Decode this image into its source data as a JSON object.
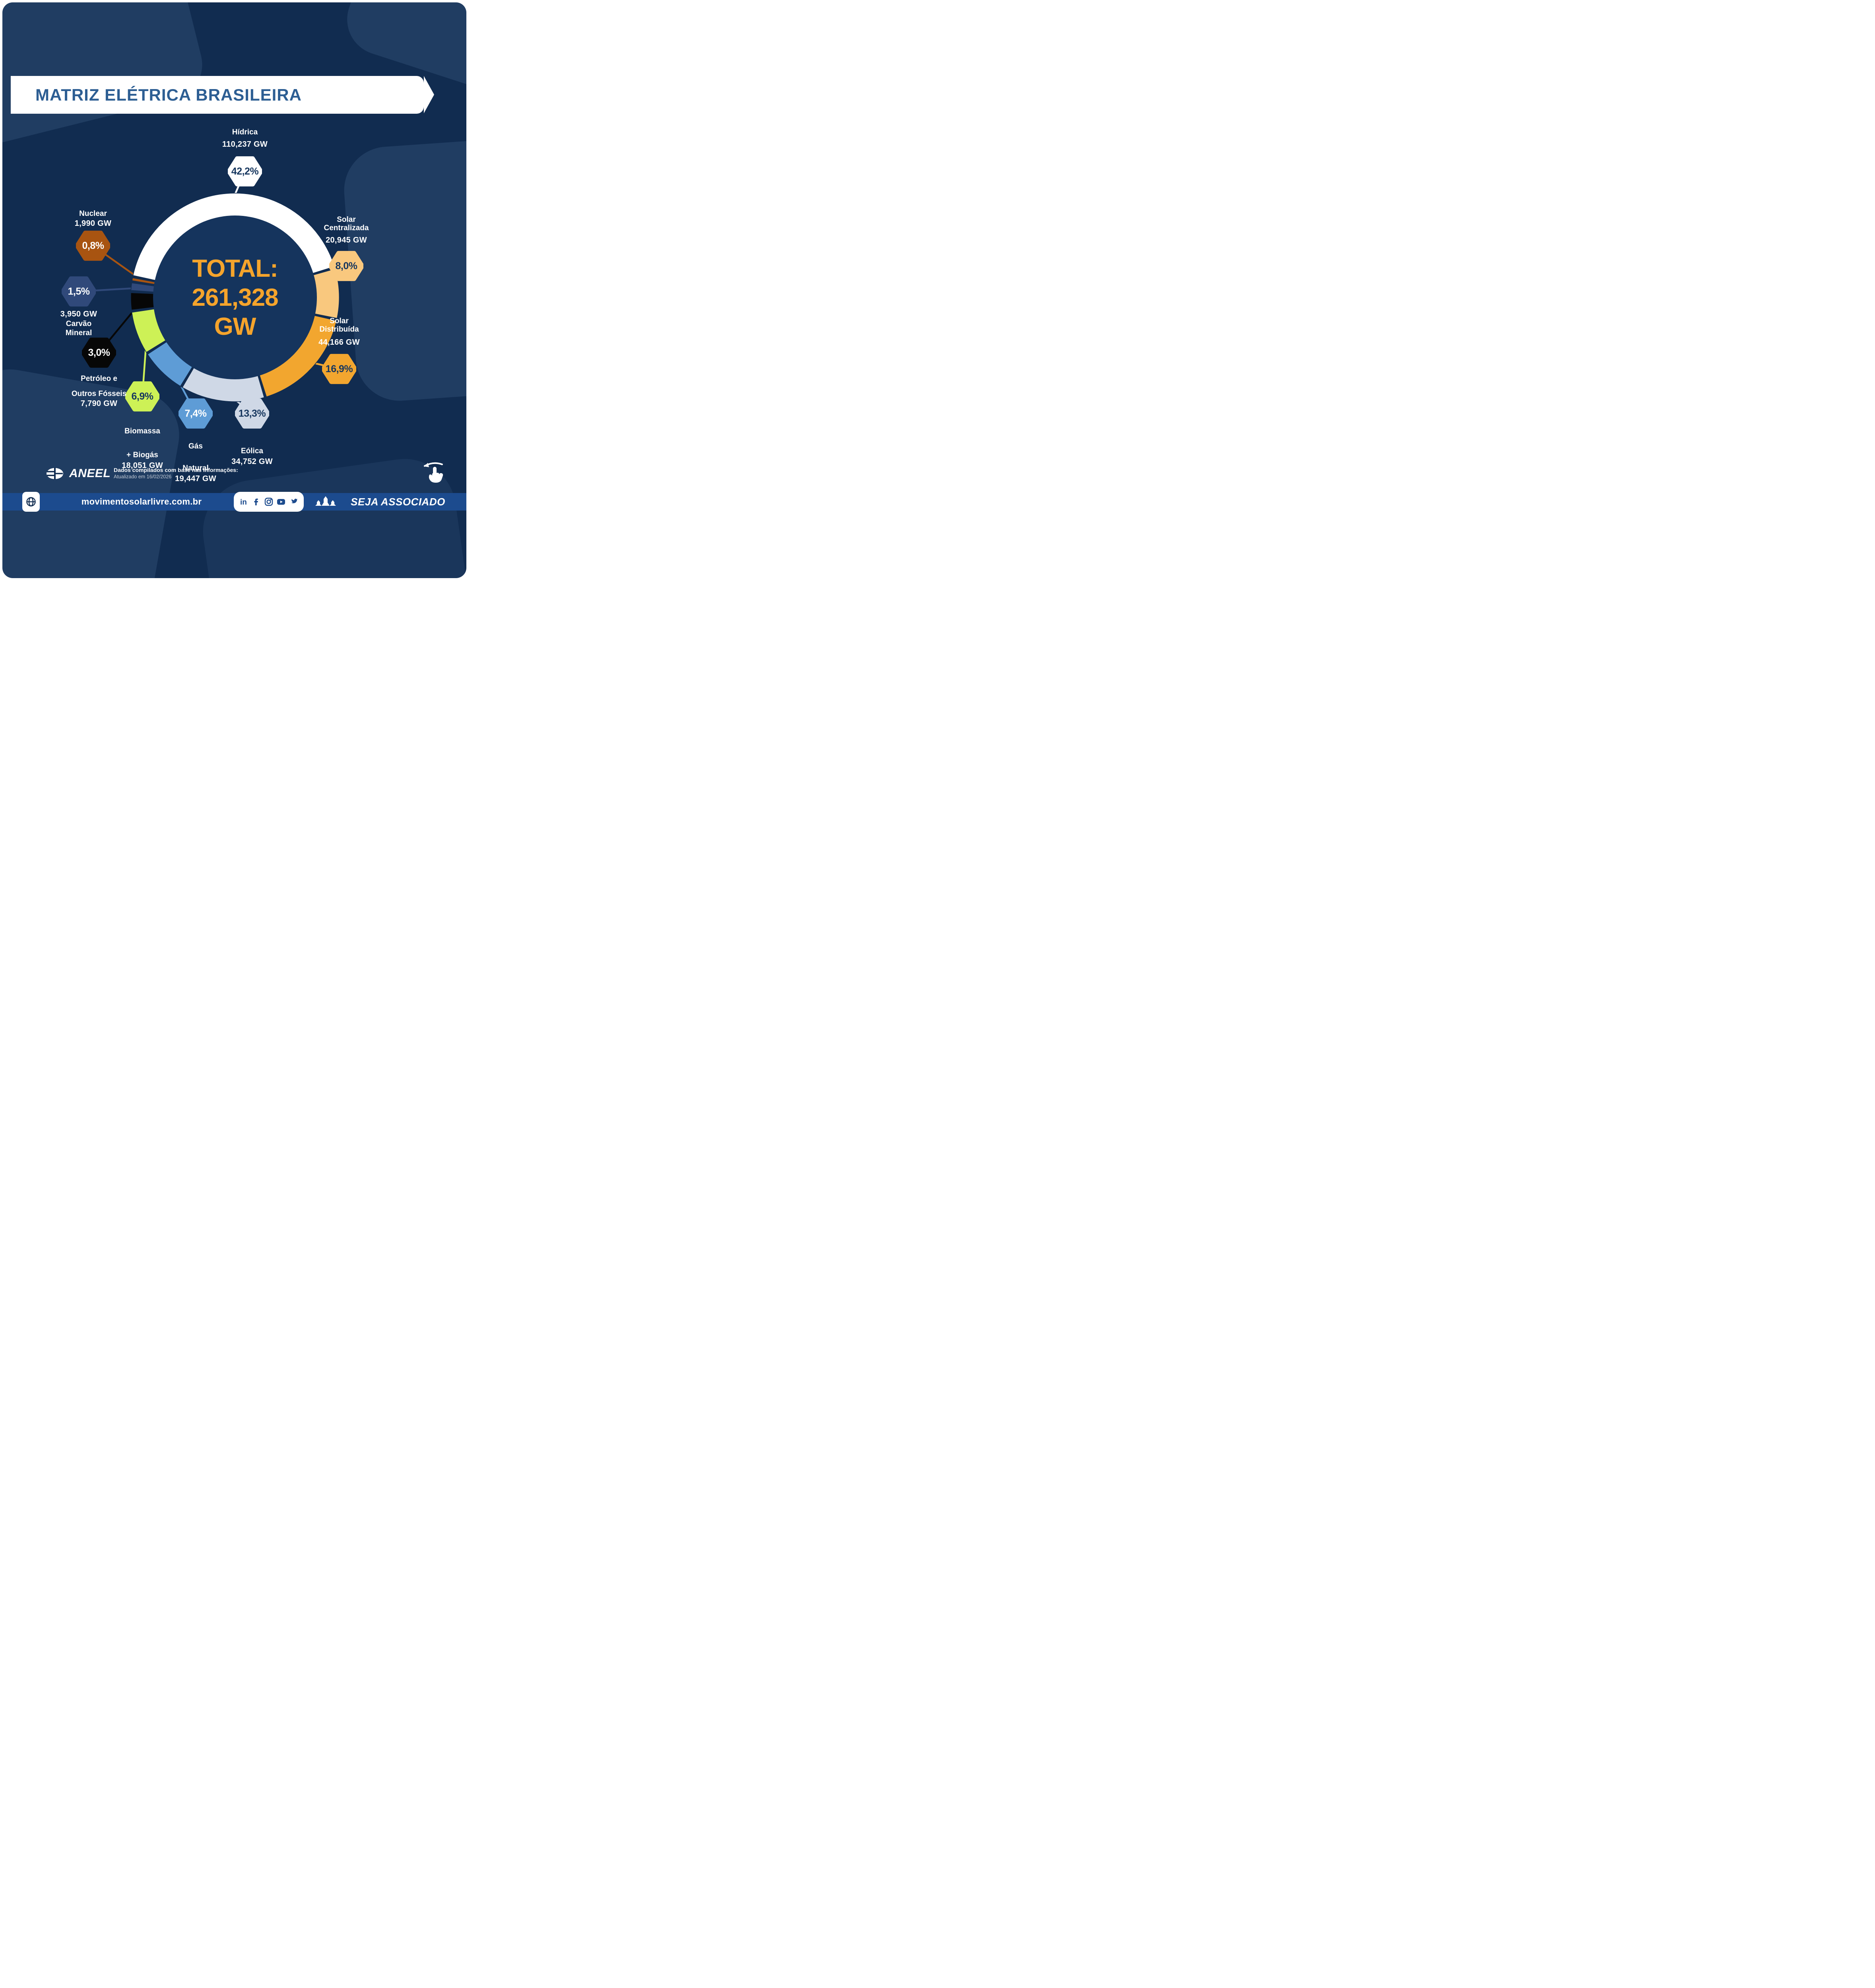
{
  "header": {
    "title": "MATRIZ ELÉTRICA BRASILEIRA"
  },
  "chart_data": {
    "type": "pie",
    "donut": true,
    "title": "Matriz Elétrica Brasileira",
    "unit": "GW",
    "total_label_lines": [
      "TOTAL:",
      "261,328",
      "GW"
    ],
    "total_value_gw": "261,328",
    "start_angle_deg": -78.5,
    "gap_deg": 1.6,
    "legend_position": "callouts-around",
    "series": [
      {
        "name": "Hídrica",
        "name_lines": [
          "Hídrica"
        ],
        "value_label": "110,237 GW",
        "value_gw": 110237,
        "pct": 42.2,
        "pct_label": "42,2%",
        "color": "#ffffff",
        "text_on_hex": "#17375f"
      },
      {
        "name": "Solar Centralizada",
        "name_lines": [
          "Solar",
          "Centralizada"
        ],
        "value_label": "20,945 GW",
        "value_gw": 20945,
        "pct": 8.0,
        "pct_label": "8,0%",
        "color": "#f9c87e",
        "text_on_hex": "#17375f"
      },
      {
        "name": "Solar Distribuída",
        "name_lines": [
          "Solar",
          "Distribuída"
        ],
        "value_label": "44,166 GW",
        "value_gw": 44166,
        "pct": 16.9,
        "pct_label": "16,9%",
        "color": "#f2a62f",
        "text_on_hex": "#17375f"
      },
      {
        "name": "Eólica",
        "name_lines": [
          "Eólica"
        ],
        "value_label": "34,752 GW",
        "value_gw": 34752,
        "pct": 13.3,
        "pct_label": "13,3%",
        "color": "#cfd8e6",
        "text_on_hex": "#17375f"
      },
      {
        "name": "Gás Natural",
        "name_lines": [
          "Gás",
          "Natural"
        ],
        "value_label": "19,447 GW",
        "value_gw": 19447,
        "pct": 7.4,
        "pct_label": "7,4%",
        "color": "#5e9cd6",
        "text_on_hex": "#ffffff"
      },
      {
        "name": "Biomassa + Biogás",
        "name_lines": [
          "Biomassa",
          "+ Biogás"
        ],
        "value_label": "18,051 GW",
        "value_gw": 18051,
        "pct": 6.9,
        "pct_label": "6,9%",
        "color": "#cdf156",
        "text_on_hex": "#17375f"
      },
      {
        "name": "Petróleo e Outros Fósseis",
        "name_lines": [
          "Petróleo e",
          "Outros Fósseis"
        ],
        "value_label": "7,790 GW",
        "value_gw": 7790,
        "pct": 3.0,
        "pct_label": "3,0%",
        "color": "#070707",
        "text_on_hex": "#ffffff"
      },
      {
        "name": "Carvão Mineral",
        "name_lines": [
          "Carvão",
          "Mineral"
        ],
        "value_label": "3,950 GW",
        "value_gw": 3950,
        "pct": 1.5,
        "pct_label": "1,5%",
        "color": "#30497a",
        "text_on_hex": "#ffffff"
      },
      {
        "name": "Nuclear",
        "name_lines": [
          "Nuclear"
        ],
        "value_label": "1,990 GW",
        "value_gw": 1990,
        "pct": 0.8,
        "pct_label": "0,8%",
        "color": "#a85411",
        "text_on_hex": "#ffffff"
      }
    ]
  },
  "footer": {
    "aneel_label": "ANEEL",
    "note_line1": "Dados compilados com base nas informações:",
    "note_line2": "Atualizado em 16/02/2026"
  },
  "bottom_bar": {
    "website": "movimentosolarlivre.com.br",
    "social_icons": [
      "linkedin",
      "facebook",
      "instagram",
      "youtube",
      "twitter"
    ],
    "cta": "SEJA ASSOCIADO"
  },
  "colors": {
    "canvas_navy": "#112c50",
    "donut_inner_navy": "#15345d",
    "title_blue": "#2d5e93",
    "total_orange": "#f5a42c",
    "bottom_bar_blue": "#1c4b8e"
  }
}
